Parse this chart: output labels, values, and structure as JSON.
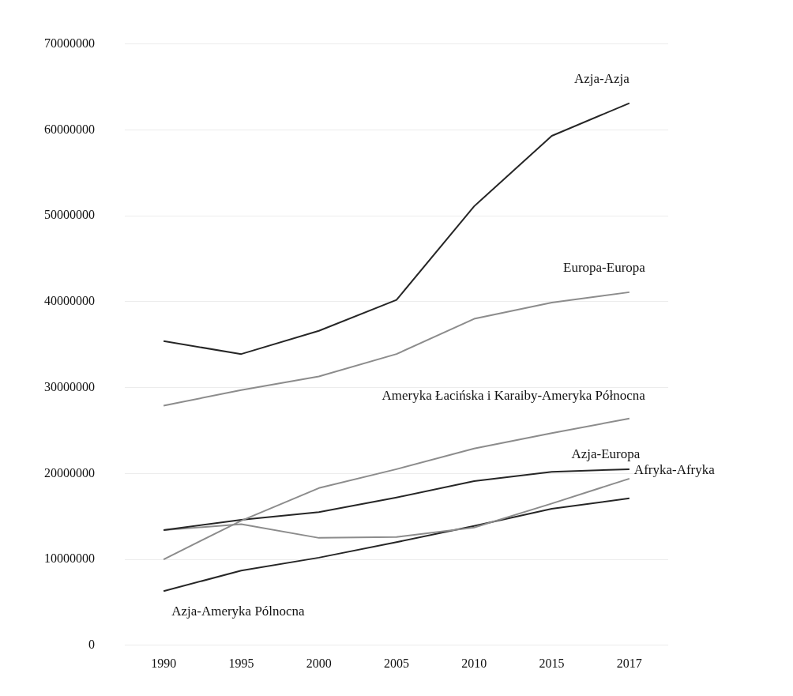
{
  "chart_data": {
    "type": "line",
    "categories": [
      "1990",
      "1995",
      "2000",
      "2005",
      "2010",
      "2015",
      "2017"
    ],
    "series": [
      {
        "name": "Azja-Azja",
        "color": "#262626",
        "values": [
          35400000,
          33900000,
          36600000,
          40200000,
          51100000,
          59300000,
          63100000
        ]
      },
      {
        "name": "Europa-Europa",
        "color": "#8c8c8c",
        "values": [
          27900000,
          29700000,
          31300000,
          33900000,
          38000000,
          39900000,
          41100000
        ]
      },
      {
        "name": "Ameryka Łacińska i Karaiby-Ameryka Północna",
        "color": "#8c8c8c",
        "values": [
          10000000,
          14500000,
          18300000,
          20500000,
          22900000,
          24700000,
          26400000
        ]
      },
      {
        "name": "Azja-Europa",
        "color": "#262626",
        "values": [
          13400000,
          14600000,
          15500000,
          17200000,
          19100000,
          20200000,
          20500000
        ]
      },
      {
        "name": "Afryka-Afryka",
        "color": "#8c8c8c",
        "values": [
          13400000,
          14100000,
          12500000,
          12600000,
          13700000,
          16500000,
          19400000
        ]
      },
      {
        "name": "Azja-Ameryka Pólnocna",
        "color": "#262626",
        "values": [
          6300000,
          8700000,
          10200000,
          12000000,
          13900000,
          15900000,
          17100000
        ]
      }
    ],
    "ylim": [
      0,
      70000000
    ],
    "yticks": [
      0,
      10000000,
      20000000,
      30000000,
      40000000,
      50000000,
      60000000,
      70000000
    ],
    "grid": "y",
    "legend": false,
    "marker": "none",
    "line_style": "solid"
  }
}
